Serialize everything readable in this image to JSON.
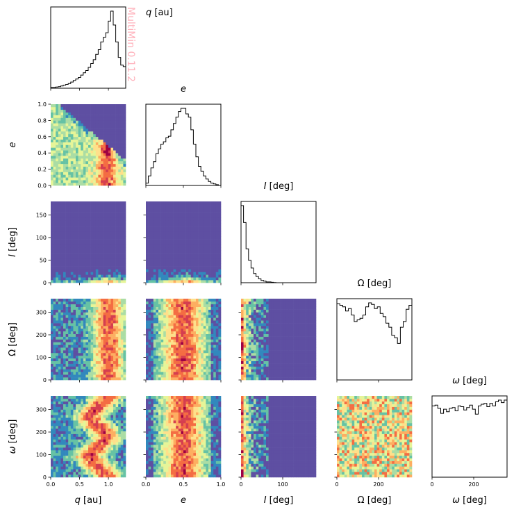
{
  "watermark": "MultiMin 0.11.2",
  "chart_data": {
    "type": "corner",
    "variables": [
      {
        "key": "q",
        "symbol": "q",
        "unit": "[au]",
        "range": [
          0,
          1.3
        ],
        "ticks": [
          0.0,
          0.5,
          1.0
        ],
        "tick_labels": [
          "0.0",
          "0.5",
          "1.0"
        ]
      },
      {
        "key": "e",
        "symbol": "e",
        "unit": "",
        "range": [
          0,
          1.0
        ],
        "ticks": [
          0.0,
          0.5,
          1.0
        ],
        "tick_labels": [
          "0.0",
          "0.5",
          "1.0"
        ],
        "y_ticks": [
          0.0,
          0.2,
          0.4,
          0.6,
          0.8,
          1.0
        ],
        "y_tick_labels": [
          "0.0",
          "0.2",
          "0.4",
          "0.6",
          "0.8",
          "1.0"
        ]
      },
      {
        "key": "I",
        "symbol": "I",
        "unit": "[deg]",
        "range": [
          0,
          180
        ],
        "ticks": [
          0,
          100
        ],
        "tick_labels": [
          "0",
          "100"
        ],
        "y_ticks": [
          0,
          50,
          100,
          150
        ],
        "y_tick_labels": [
          "0",
          "50",
          "100",
          "150"
        ]
      },
      {
        "key": "Omega",
        "symbol": "Ω",
        "unit": "[deg]",
        "range": [
          0,
          360
        ],
        "ticks": [
          0,
          200
        ],
        "tick_labels": [
          "0",
          "200"
        ],
        "y_ticks": [
          0,
          100,
          200,
          300
        ],
        "y_tick_labels": [
          "0",
          "100",
          "200",
          "300"
        ]
      },
      {
        "key": "omega",
        "symbol": "ω",
        "unit": "[deg]",
        "range": [
          0,
          360
        ],
        "ticks": [
          0,
          200
        ],
        "tick_labels": [
          "0",
          "200"
        ],
        "y_ticks": [
          0,
          100,
          200,
          300
        ],
        "y_tick_labels": [
          "0",
          "100",
          "200",
          "300"
        ]
      }
    ],
    "histograms": {
      "q": [
        0.01,
        0.01,
        0.015,
        0.02,
        0.03,
        0.04,
        0.05,
        0.06,
        0.08,
        0.1,
        0.12,
        0.14,
        0.17,
        0.2,
        0.23,
        0.27,
        0.32,
        0.37,
        0.44,
        0.5,
        0.6,
        0.66,
        0.72,
        0.87,
        1.0,
        0.82,
        0.6,
        0.4,
        0.3,
        0.28
      ],
      "e": [
        0.03,
        0.12,
        0.22,
        0.3,
        0.4,
        0.46,
        0.52,
        0.55,
        0.6,
        0.62,
        0.7,
        0.78,
        0.86,
        0.93,
        0.97,
        0.97,
        0.9,
        0.86,
        0.7,
        0.52,
        0.36,
        0.24,
        0.18,
        0.12,
        0.08,
        0.05,
        0.03,
        0.02,
        0.01,
        0.0
      ],
      "I": [
        1.0,
        0.78,
        0.44,
        0.29,
        0.19,
        0.12,
        0.08,
        0.05,
        0.03,
        0.02,
        0.01,
        0.01,
        0.005,
        0.003,
        0,
        0,
        0,
        0,
        0,
        0,
        0,
        0,
        0,
        0,
        0,
        0,
        0,
        0,
        0,
        0
      ],
      "Omega": [
        0.94,
        0.92,
        0.9,
        0.85,
        0.88,
        0.8,
        0.72,
        0.74,
        0.76,
        0.8,
        0.9,
        0.95,
        0.93,
        0.88,
        0.9,
        0.82,
        0.78,
        0.7,
        0.65,
        0.55,
        0.52,
        0.45,
        0.65,
        0.72,
        0.87,
        0.92
      ],
      "omega": [
        0.86,
        0.87,
        0.83,
        0.77,
        0.82,
        0.79,
        0.83,
        0.84,
        0.8,
        0.86,
        0.85,
        0.81,
        0.84,
        0.87,
        0.82,
        0.76,
        0.86,
        0.88,
        0.89,
        0.85,
        0.89,
        0.86,
        0.91,
        0.93,
        0.9,
        0.93
      ]
    },
    "grid": false,
    "colormap": [
      "#5e4fa2",
      "#3288bd",
      "#66c2a5",
      "#abdda4",
      "#e6f598",
      "#fee08b",
      "#fdae61",
      "#f46d43",
      "#d53e4f",
      "#9e0142"
    ]
  }
}
